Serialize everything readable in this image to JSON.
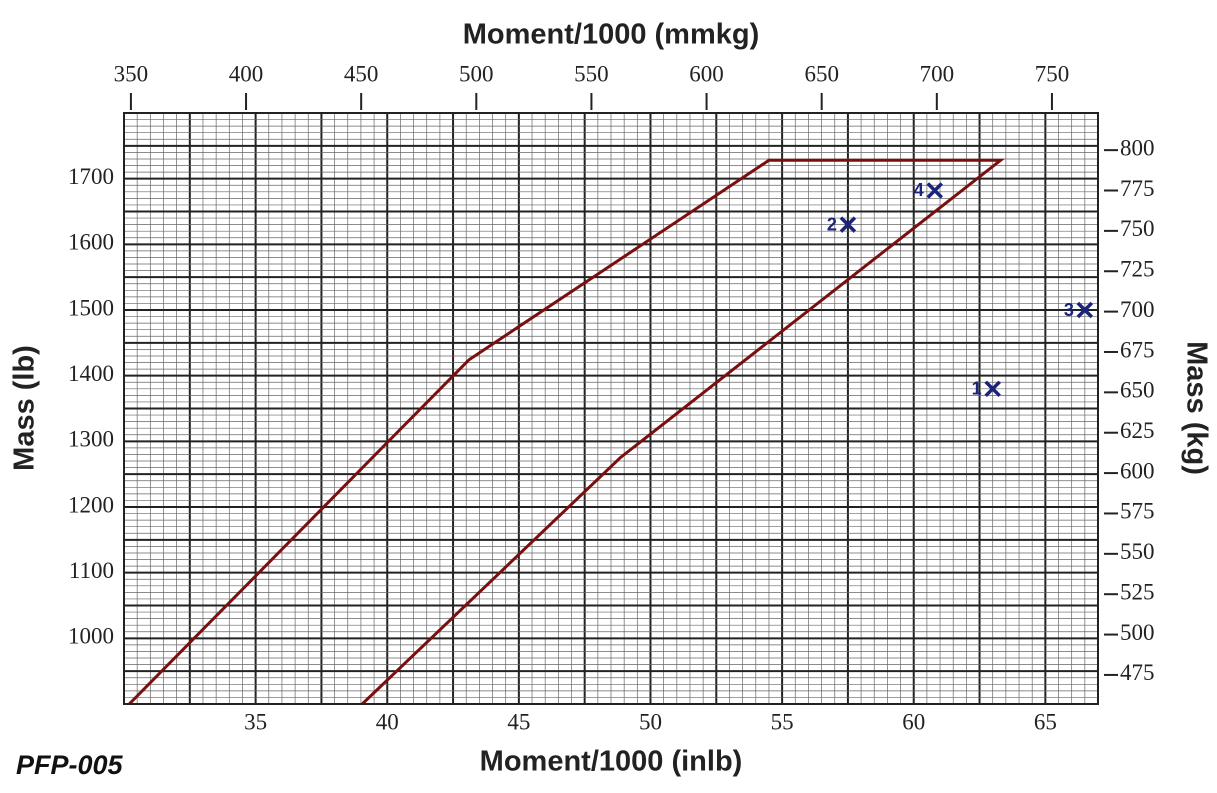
{
  "chart_data": {
    "type": "envelope",
    "title": "Moment/1000 (mmkg)",
    "xlabel": "Moment/1000 (inlb)",
    "ylabel": "Mass (lb)",
    "y2label": "Mass (kg)",
    "footer": "PFP-005",
    "xlim": [
      30,
      67
    ],
    "xticks": [
      35,
      40,
      45,
      50,
      55,
      60,
      65
    ],
    "ylim": [
      900,
      1800
    ],
    "yticks": [
      1000,
      1100,
      1200,
      1300,
      1400,
      1500,
      1600,
      1700
    ],
    "x2lim": [
      347,
      770
    ],
    "x2ticks": [
      350,
      400,
      450,
      500,
      550,
      600,
      650,
      700,
      750
    ],
    "y2lim": [
      457,
      823
    ],
    "y2ticks": [
      475,
      500,
      525,
      550,
      575,
      600,
      625,
      650,
      675,
      700,
      725,
      750,
      775,
      800
    ],
    "grid": true,
    "envelope": {
      "color": "#7a0f0f",
      "x": [
        30.2,
        43.1,
        54.5,
        63.3,
        48.85,
        39.05
      ],
      "y": [
        900,
        1424,
        1728,
        1728,
        1275,
        900
      ]
    },
    "points": {
      "color": "#1b237a",
      "labels": [
        "1",
        "2",
        "3",
        "4"
      ],
      "x": [
        63.0,
        57.5,
        66.5,
        60.8
      ],
      "y": [
        1380,
        1630,
        1500,
        1682
      ]
    }
  }
}
